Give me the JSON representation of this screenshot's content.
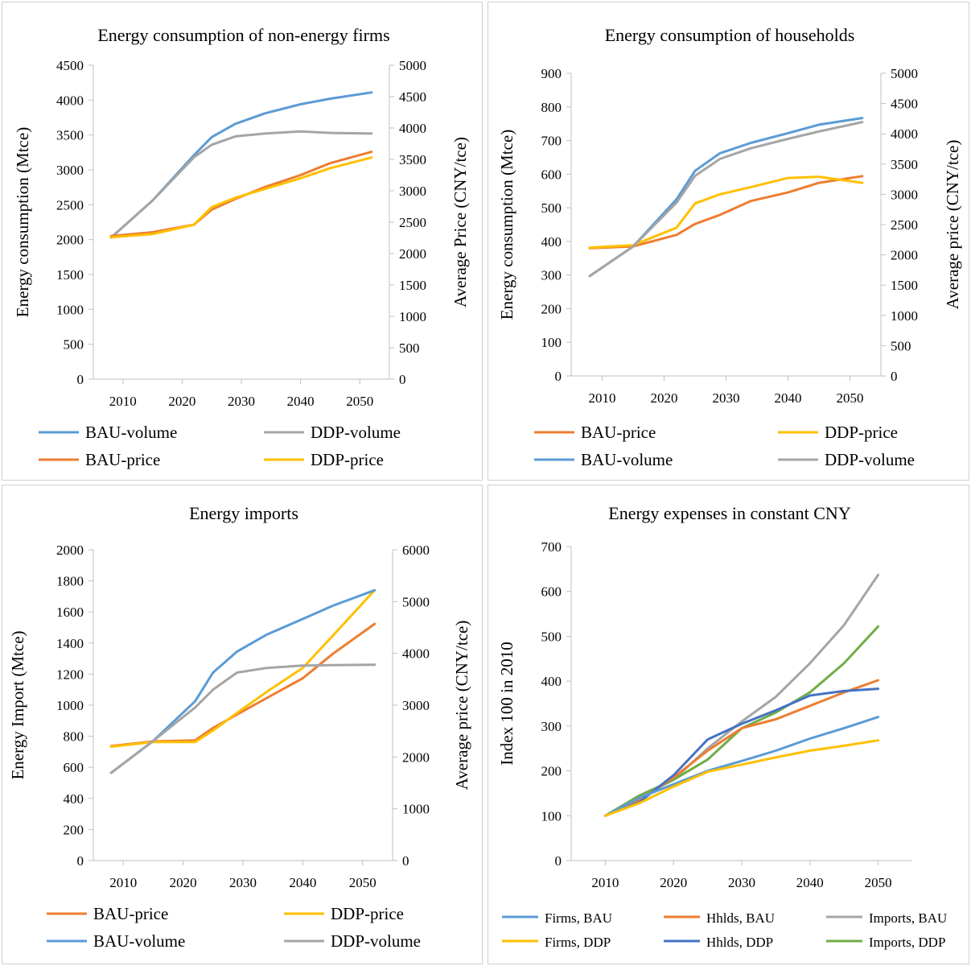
{
  "chart_data": [
    {
      "type": "line",
      "title": "Energy consumption of non-energy firms",
      "x": [
        2008,
        2015,
        2022,
        2025,
        2029,
        2034,
        2040,
        2045,
        2052
      ],
      "x_ticks": [
        "2010",
        "2020",
        "2030",
        "2040",
        "2050"
      ],
      "x_tick_values": [
        2010,
        2020,
        2030,
        2040,
        2050
      ],
      "ylabel": "Energy consumption (Mtce)",
      "ylim": [
        0,
        4500
      ],
      "y_ticks": [
        "0",
        "500",
        "1000",
        "1500",
        "2000",
        "2500",
        "3000",
        "3500",
        "4000",
        "4500"
      ],
      "y2label": "Average Price (CNY/tce)",
      "y2lim": [
        0,
        5000
      ],
      "y2_ticks": [
        "0",
        "500",
        "1000",
        "1500",
        "2000",
        "2500",
        "3000",
        "3500",
        "4000",
        "4500",
        "5000"
      ],
      "legend": [
        {
          "name": "BAU-volume",
          "color": "#5b9bd5"
        },
        {
          "name": "DDP-volume",
          "color": "#a5a5a5"
        },
        {
          "name": "BAU-price",
          "color": "#ed7d31"
        },
        {
          "name": "DDP-price",
          "color": "#ffc000"
        }
      ],
      "series": [
        {
          "name": "BAU-volume",
          "axis": "left",
          "color": "#5b9bd5",
          "values": [
            2030,
            2560,
            3210,
            3470,
            3660,
            3810,
            3940,
            4020,
            4110
          ]
        },
        {
          "name": "DDP-volume",
          "axis": "left",
          "color": "#a5a5a5",
          "values": [
            2030,
            2560,
            3180,
            3360,
            3480,
            3520,
            3550,
            3530,
            3520
          ]
        },
        {
          "name": "BAU-price",
          "axis": "right",
          "color": "#ed7d31",
          "values": [
            2280,
            2340,
            2460,
            2700,
            2870,
            3060,
            3250,
            3440,
            3620
          ]
        },
        {
          "name": "DDP-price",
          "axis": "right",
          "color": "#ffc000",
          "values": [
            2260,
            2310,
            2460,
            2740,
            2890,
            3030,
            3200,
            3360,
            3530
          ]
        }
      ]
    },
    {
      "type": "line",
      "title": "Energy consumption of households",
      "x": [
        2008,
        2015,
        2022,
        2025,
        2029,
        2034,
        2040,
        2045,
        2052
      ],
      "x_ticks": [
        "2010",
        "2020",
        "2030",
        "2040",
        "2050"
      ],
      "x_tick_values": [
        2010,
        2020,
        2030,
        2040,
        2050
      ],
      "ylabel": "Energy consumption (Mtce)",
      "ylim": [
        0,
        900
      ],
      "y_ticks": [
        "0",
        "100",
        "200",
        "300",
        "400",
        "500",
        "600",
        "700",
        "800",
        "900"
      ],
      "y2label": "Average price (CNY/tce)",
      "y2lim": [
        0,
        5000
      ],
      "y2_ticks": [
        "0",
        "500",
        "1000",
        "1500",
        "2000",
        "2500",
        "3000",
        "3500",
        "4000",
        "4500",
        "5000"
      ],
      "legend": [
        {
          "name": "BAU-price",
          "color": "#ed7d31"
        },
        {
          "name": "DDP-price",
          "color": "#ffc000"
        },
        {
          "name": "BAU-volume",
          "color": "#5b9bd5"
        },
        {
          "name": "DDP-volume",
          "color": "#a5a5a5"
        }
      ],
      "series": [
        {
          "name": "BAU-price",
          "axis": "right",
          "color": "#ed7d31",
          "values": [
            2110,
            2140,
            2330,
            2510,
            2660,
            2890,
            3030,
            3190,
            3300
          ]
        },
        {
          "name": "DDP-price",
          "axis": "right",
          "color": "#ffc000",
          "values": [
            2120,
            2160,
            2450,
            2850,
            3000,
            3120,
            3270,
            3290,
            3190
          ]
        },
        {
          "name": "BAU-volume",
          "axis": "left",
          "color": "#5b9bd5",
          "values": [
            297,
            385,
            525,
            610,
            662,
            693,
            722,
            747,
            767
          ]
        },
        {
          "name": "DDP-volume",
          "axis": "left",
          "color": "#a5a5a5",
          "values": [
            297,
            385,
            515,
            595,
            645,
            677,
            705,
            727,
            755
          ]
        }
      ]
    },
    {
      "type": "line",
      "title": "Energy imports",
      "x": [
        2008,
        2015,
        2022,
        2025,
        2029,
        2034,
        2040,
        2045,
        2052
      ],
      "x_ticks": [
        "2010",
        "2020",
        "2030",
        "2040",
        "2050"
      ],
      "x_tick_values": [
        2010,
        2020,
        2030,
        2040,
        2050
      ],
      "ylabel": "Energy Import (Mtce)",
      "ylim": [
        0,
        2000
      ],
      "y_ticks": [
        "0",
        "200",
        "400",
        "600",
        "800",
        "1000",
        "1200",
        "1400",
        "1600",
        "1800",
        "2000"
      ],
      "y2label": "Average price (CNY/tce)",
      "y2lim": [
        0,
        6000
      ],
      "y2_ticks": [
        "0",
        "1000",
        "2000",
        "3000",
        "4000",
        "5000",
        "6000"
      ],
      "legend": [
        {
          "name": "BAU-price",
          "color": "#ed7d31"
        },
        {
          "name": "DDP-price",
          "color": "#ffc000"
        },
        {
          "name": "BAU-volume",
          "color": "#5b9bd5"
        },
        {
          "name": "DDP-volume",
          "color": "#a5a5a5"
        }
      ],
      "series": [
        {
          "name": "BAU-price",
          "axis": "right",
          "color": "#ed7d31",
          "values": [
            2210,
            2300,
            2320,
            2560,
            2820,
            3140,
            3520,
            3990,
            4570
          ]
        },
        {
          "name": "DDP-price",
          "axis": "right",
          "color": "#ffc000",
          "values": [
            2200,
            2290,
            2290,
            2510,
            2850,
            3260,
            3720,
            4340,
            5220
          ]
        },
        {
          "name": "BAU-volume",
          "axis": "left",
          "color": "#5b9bd5",
          "values": [
            565,
            770,
            1025,
            1210,
            1345,
            1455,
            1555,
            1640,
            1740
          ]
        },
        {
          "name": "DDP-volume",
          "axis": "left",
          "color": "#a5a5a5",
          "values": [
            565,
            770,
            985,
            1100,
            1210,
            1240,
            1255,
            1258,
            1260
          ]
        }
      ]
    },
    {
      "type": "line",
      "title": "Energy expenses in constant CNY",
      "x": [
        2010,
        2015,
        2020,
        2025,
        2030,
        2035,
        2040,
        2045,
        2050
      ],
      "x_ticks": [
        "2010",
        "2020",
        "2030",
        "2040",
        "2050"
      ],
      "x_tick_values": [
        2010,
        2020,
        2030,
        2040,
        2050
      ],
      "ylabel": "Index 100 in 2010",
      "ylim": [
        0,
        700
      ],
      "y_ticks": [
        "0",
        "100",
        "200",
        "300",
        "400",
        "500",
        "600",
        "700"
      ],
      "legend": [
        {
          "name": "Firms, BAU",
          "color": "#5b9bd5"
        },
        {
          "name": "Hhlds, BAU",
          "color": "#ed7d31"
        },
        {
          "name": "Imports, BAU",
          "color": "#a5a5a5"
        },
        {
          "name": "Firms, DDP",
          "color": "#ffc000"
        },
        {
          "name": "Hhlds, DDP",
          "color": "#4472c4"
        },
        {
          "name": "Imports, DDP",
          "color": "#70ad47"
        }
      ],
      "series": [
        {
          "name": "Imports, BAU",
          "color": "#a5a5a5",
          "values": [
            100,
            140,
            180,
            250,
            310,
            365,
            440,
            525,
            637
          ]
        },
        {
          "name": "Imports, DDP",
          "color": "#70ad47",
          "values": [
            100,
            145,
            180,
            225,
            295,
            330,
            375,
            440,
            522
          ]
        },
        {
          "name": "Hhlds, BAU",
          "color": "#ed7d31",
          "values": [
            100,
            135,
            185,
            245,
            295,
            315,
            345,
            375,
            402
          ]
        },
        {
          "name": "Hhlds, DDP",
          "color": "#4472c4",
          "values": [
            100,
            130,
            190,
            270,
            305,
            335,
            368,
            378,
            383
          ]
        },
        {
          "name": "Firms, BAU",
          "color": "#5b9bd5",
          "values": [
            100,
            140,
            170,
            200,
            222,
            245,
            272,
            295,
            320
          ]
        },
        {
          "name": "Firms, DDP",
          "color": "#ffc000",
          "values": [
            100,
            128,
            165,
            198,
            214,
            230,
            245,
            256,
            268
          ]
        }
      ]
    }
  ]
}
